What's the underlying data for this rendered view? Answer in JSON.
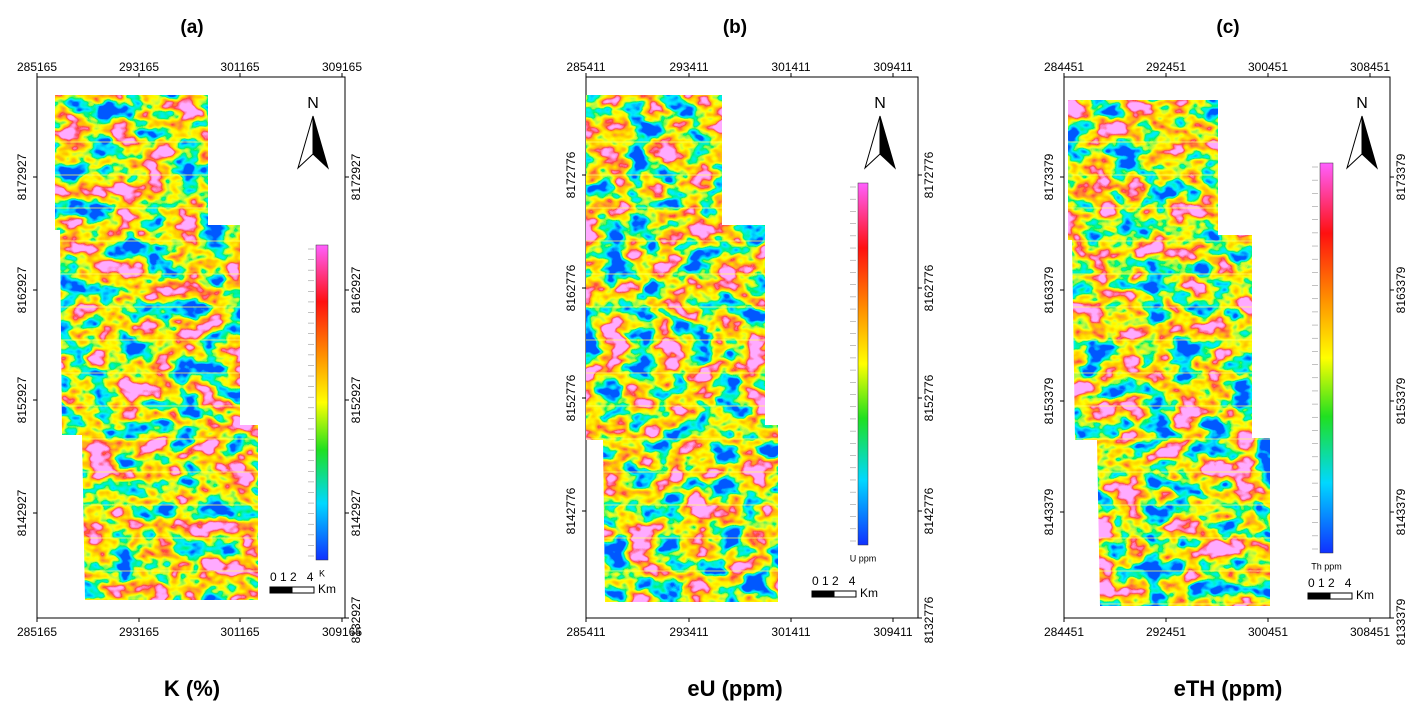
{
  "panels": [
    {
      "label": "(a)",
      "title": "K (%)",
      "x_ticks": [
        "285165",
        "293165",
        "301165",
        "309165"
      ],
      "y_ticks": [
        "8172927",
        "8162927",
        "8152927",
        "8142927",
        "8132927"
      ],
      "north": "N",
      "scale_numbers": "0 1 2   4",
      "scale_unit": "Km",
      "legend_label": "K"
    },
    {
      "label": "(b)",
      "title": "eU (ppm)",
      "x_ticks": [
        "285411",
        "293411",
        "301411",
        "309411"
      ],
      "y_ticks": [
        "8172776",
        "8162776",
        "8152776",
        "8142776",
        "8132776"
      ],
      "north": "N",
      "scale_numbers": "0 1 2   4",
      "scale_unit": "Km",
      "legend_label": "U ppm"
    },
    {
      "label": "(c)",
      "title": "eTH (ppm)",
      "x_ticks": [
        "284451",
        "292451",
        "300451",
        "308451"
      ],
      "y_ticks": [
        "8173379",
        "8163379",
        "8153379",
        "8143379",
        "8133379"
      ],
      "north": "N",
      "scale_numbers": "0 1 2   4",
      "scale_unit": "Km",
      "legend_label": "Th ppm"
    }
  ]
}
